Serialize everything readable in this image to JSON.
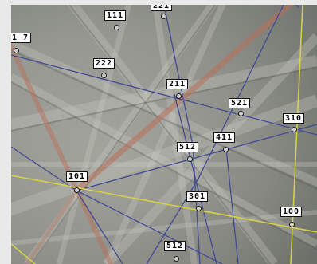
{
  "colors": {
    "band_overlay": "#b86f5a",
    "zone_axis_blue": "#414a93",
    "zone_axis_yellow": "#d6d047",
    "background": "#e9e9e9"
  },
  "poles": [
    {
      "id": "pole-111",
      "text": "111"
    },
    {
      "id": "pole-top-cut",
      "text": "221"
    },
    {
      "id": "pole-1-17",
      "text": "1 7"
    },
    {
      "id": "pole-222",
      "text": "222"
    },
    {
      "id": "pole-211",
      "text": "211"
    },
    {
      "id": "pole-521",
      "text": "521"
    },
    {
      "id": "pole-310",
      "text": "310"
    },
    {
      "id": "pole-411",
      "text": "411"
    },
    {
      "id": "pole-512-upper",
      "text": "512"
    },
    {
      "id": "pole-101",
      "text": "101"
    },
    {
      "id": "pole-301",
      "text": "301"
    },
    {
      "id": "pole-100",
      "text": "100"
    },
    {
      "id": "pole-512-lower",
      "text": "512"
    }
  ]
}
